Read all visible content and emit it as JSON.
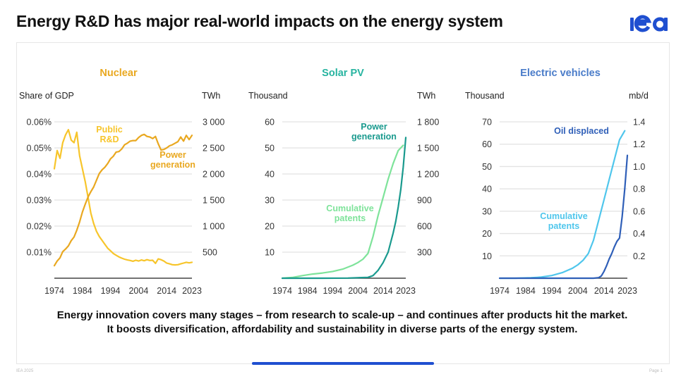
{
  "slide": {
    "title": "Energy R&D has major real-world impacts on the energy system",
    "logo_text": "iea",
    "logo_color": "#1f4fd0",
    "caption_line1": "Energy innovation covers many stages – from research to scale-up – and continues after products hit the market.",
    "caption_line2": "It boosts diversification, affordability and sustainability in diverse parts of the energy system.",
    "footer_left": "IEA 2025",
    "footer_right": "Page 1",
    "progress_accent": "#1f4fd0"
  },
  "chart_data": [
    {
      "type": "line",
      "title": "Nuclear",
      "title_color": "#e9a820",
      "ylabel_left": "Share of GDP",
      "ylabel_right": "TWh",
      "x_ticks": [
        "1974",
        "1984",
        "1994",
        "2004",
        "2014",
        "2023"
      ],
      "xlim": [
        1974,
        2023
      ],
      "y_left": {
        "ylim": [
          0,
          0.06
        ],
        "ticks": [
          0.01,
          0.02,
          0.03,
          0.04,
          0.05,
          0.06
        ],
        "tick_labels": [
          "0.01%",
          "0.02%",
          "0.03%",
          "0.04%",
          "0.05%",
          "0.06%"
        ]
      },
      "y_right": {
        "ylim": [
          0,
          3000
        ],
        "ticks": [
          500,
          1000,
          1500,
          2000,
          2500,
          3000
        ],
        "tick_labels": [
          "500",
          "1 000",
          "1 500",
          "2 000",
          "2 500",
          "3 000"
        ]
      },
      "grid": true,
      "series": [
        {
          "name": "Public R&D",
          "label_lines": [
            "Public",
            "R&D"
          ],
          "axis": "left",
          "color": "#f7c52b",
          "x": [
            1974,
            1975,
            1976,
            1977,
            1978,
            1979,
            1980,
            1981,
            1982,
            1983,
            1984,
            1985,
            1986,
            1987,
            1988,
            1989,
            1990,
            1991,
            1992,
            1993,
            1994,
            1995,
            1996,
            1997,
            1998,
            1999,
            2000,
            2001,
            2002,
            2003,
            2004,
            2005,
            2006,
            2007,
            2008,
            2009,
            2010,
            2011,
            2012,
            2013,
            2014,
            2015,
            2016,
            2017,
            2018,
            2019,
            2020,
            2021,
            2022,
            2023
          ],
          "values": [
            0.042,
            0.049,
            0.046,
            0.052,
            0.055,
            0.057,
            0.053,
            0.052,
            0.056,
            0.047,
            0.042,
            0.037,
            0.031,
            0.025,
            0.021,
            0.018,
            0.016,
            0.0145,
            0.013,
            0.0115,
            0.0105,
            0.0095,
            0.0088,
            0.0082,
            0.0077,
            0.0073,
            0.007,
            0.0068,
            0.0065,
            0.0069,
            0.0066,
            0.007,
            0.0067,
            0.0071,
            0.0068,
            0.0069,
            0.0057,
            0.0074,
            0.0071,
            0.0066,
            0.0058,
            0.0055,
            0.0052,
            0.0051,
            0.0052,
            0.0055,
            0.0058,
            0.0061,
            0.0059,
            0.0061
          ]
        },
        {
          "name": "Power generation",
          "label_lines": [
            "Power",
            "generation"
          ],
          "axis": "right",
          "color": "#e9a820",
          "x": [
            1974,
            1975,
            1976,
            1977,
            1978,
            1979,
            1980,
            1981,
            1982,
            1983,
            1984,
            1985,
            1986,
            1987,
            1988,
            1989,
            1990,
            1991,
            1992,
            1993,
            1994,
            1995,
            1996,
            1997,
            1998,
            1999,
            2000,
            2001,
            2002,
            2003,
            2004,
            2005,
            2006,
            2007,
            2008,
            2009,
            2010,
            2011,
            2012,
            2013,
            2014,
            2015,
            2016,
            2017,
            2018,
            2019,
            2020,
            2021,
            2022,
            2023
          ],
          "values": [
            240,
            330,
            390,
            510,
            560,
            620,
            720,
            790,
            920,
            1080,
            1270,
            1420,
            1560,
            1660,
            1750,
            1880,
            2010,
            2080,
            2130,
            2200,
            2290,
            2340,
            2420,
            2430,
            2480,
            2560,
            2590,
            2630,
            2640,
            2640,
            2700,
            2740,
            2760,
            2720,
            2710,
            2680,
            2720,
            2580,
            2460,
            2470,
            2500,
            2540,
            2560,
            2590,
            2620,
            2710,
            2630,
            2740,
            2660,
            2740
          ]
        }
      ]
    },
    {
      "type": "line",
      "title": "Solar PV",
      "title_color": "#27b4a0",
      "ylabel_left": "Thousand",
      "ylabel_right": "TWh",
      "x_ticks": [
        "1974",
        "1984",
        "1994",
        "2004",
        "2014",
        "2023"
      ],
      "xlim": [
        1974,
        2023
      ],
      "y_left": {
        "ylim": [
          0,
          60
        ],
        "ticks": [
          10,
          20,
          30,
          40,
          50,
          60
        ],
        "tick_labels": [
          "10",
          "20",
          "30",
          "40",
          "50",
          "60"
        ]
      },
      "y_right": {
        "ylim": [
          0,
          1800
        ],
        "ticks": [
          300,
          600,
          900,
          1200,
          1500,
          1800
        ],
        "tick_labels": [
          "300",
          "600",
          "900",
          "1 200",
          "1 500",
          "1 800"
        ]
      },
      "grid": true,
      "series": [
        {
          "name": "Cumulative patents",
          "label_lines": [
            "Cumulative",
            "patents"
          ],
          "axis": "left",
          "color": "#7ee39a",
          "x": [
            1974,
            1978,
            1982,
            1986,
            1990,
            1994,
            1998,
            2002,
            2004,
            2006,
            2008,
            2010,
            2012,
            2014,
            2016,
            2018,
            2020,
            2022
          ],
          "values": [
            0,
            0.3,
            1,
            1.6,
            2,
            2.6,
            3.5,
            5,
            6,
            7.3,
            9.5,
            16,
            24,
            31,
            38,
            44,
            49,
            51
          ]
        },
        {
          "name": "Power generation",
          "label_lines": [
            "Power",
            "generation"
          ],
          "axis": "right",
          "color": "#1a9a8e",
          "x": [
            1974,
            1990,
            2000,
            2008,
            2010,
            2012,
            2014,
            2016,
            2018,
            2019,
            2020,
            2021,
            2022,
            2023
          ],
          "values": [
            0,
            0,
            2,
            10,
            30,
            90,
            180,
            300,
            520,
            650,
            820,
            1020,
            1280,
            1620
          ]
        }
      ]
    },
    {
      "type": "line",
      "title": "Electric vehicles",
      "title_color": "#4a7cc9",
      "ylabel_left": "Thousand",
      "ylabel_right": "mb/d",
      "x_ticks": [
        "1974",
        "1984",
        "1994",
        "2004",
        "2014",
        "2023"
      ],
      "xlim": [
        1974,
        2023
      ],
      "y_left": {
        "ylim": [
          0,
          70
        ],
        "ticks": [
          10,
          20,
          30,
          40,
          50,
          60,
          70
        ],
        "tick_labels": [
          "10",
          "20",
          "30",
          "40",
          "50",
          "60",
          "70"
        ]
      },
      "y_right": {
        "ylim": [
          0,
          1.4
        ],
        "ticks": [
          0.2,
          0.4,
          0.6,
          0.8,
          1.0,
          1.2,
          1.4
        ],
        "tick_labels": [
          "0.2",
          "0.4",
          "0.6",
          "0.8",
          "1.0",
          "1.2",
          "1.4"
        ]
      },
      "grid": true,
      "series": [
        {
          "name": "Cumulative patents",
          "label_lines": [
            "Cumulative",
            "patents"
          ],
          "axis": "left",
          "color": "#4fc6ec",
          "x": [
            1974,
            1980,
            1986,
            1990,
            1994,
            1998,
            2002,
            2004,
            2006,
            2008,
            2010,
            2012,
            2014,
            2016,
            2018,
            2020,
            2022
          ],
          "values": [
            0,
            0,
            0.2,
            0.5,
            1.2,
            2.5,
            4.5,
            6,
            8,
            11,
            17,
            26,
            35,
            44,
            53,
            62,
            66
          ]
        },
        {
          "name": "Oil displaced",
          "label_lines": [
            "Oil displaced"
          ],
          "axis": "right",
          "color": "#2f5fb8",
          "x": [
            1974,
            2010,
            2012,
            2013,
            2014,
            2015,
            2016,
            2017,
            2018,
            2019,
            2020,
            2021,
            2022,
            2023
          ],
          "values": [
            0,
            0,
            0.005,
            0.02,
            0.06,
            0.11,
            0.17,
            0.22,
            0.28,
            0.33,
            0.36,
            0.55,
            0.8,
            1.1
          ]
        }
      ]
    }
  ]
}
